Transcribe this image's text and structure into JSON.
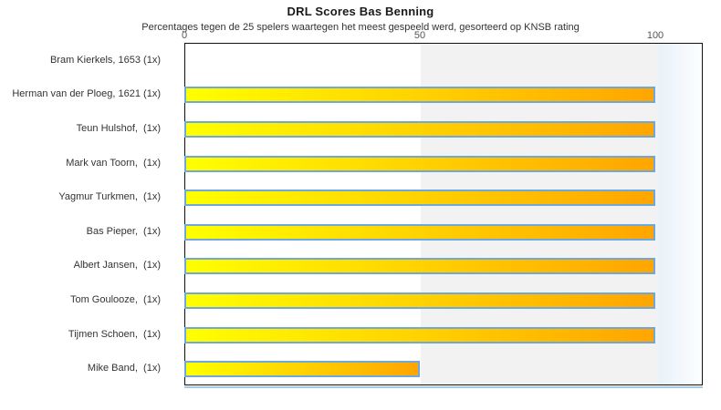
{
  "title": "DRL Scores Bas Benning",
  "subtitle": "Percentages tegen de 25 spelers waartegen het meest gespeeld werd, gesorteerd op KNSB rating",
  "chart_data": {
    "type": "bar",
    "orientation": "horizontal",
    "title": "DRL Scores Bas Benning",
    "subtitle": "Percentages tegen de 25 spelers waartegen het meest gespeeld werd, gesorteerd op KNSB rating",
    "categories": [
      "Bram Kierkels, 1653 (1x)",
      "Herman van der Ploeg, 1621 (1x)",
      "Teun Hulshof,  (1x)",
      "Mark van Toorn,  (1x)",
      "Yagmur Turkmen,  (1x)",
      "Bas Pieper,  (1x)",
      "Albert Jansen,  (1x)",
      "Tom Goulooze,  (1x)",
      "Tijmen Schoen,  (1x)",
      "Mike Band,  (1x)"
    ],
    "values": [
      0,
      100,
      100,
      100,
      100,
      100,
      100,
      100,
      100,
      50
    ],
    "xlabel": "",
    "ylabel": "",
    "xlim": [
      0,
      110
    ],
    "x_ticks": [
      0,
      50,
      100
    ],
    "grid": false,
    "legend": false,
    "colors": {
      "bar_gradient_start": "#ffff00",
      "bar_gradient_end": "#ffa500",
      "bar_border": "#6fa8dc",
      "band_50_100": "#f2f2f2",
      "beyond_100_tint": "#e9f2f9",
      "plot_border": "#111111",
      "underline": "#a6c9e2",
      "tick_text": "#555555",
      "label_text": "#333333"
    }
  }
}
